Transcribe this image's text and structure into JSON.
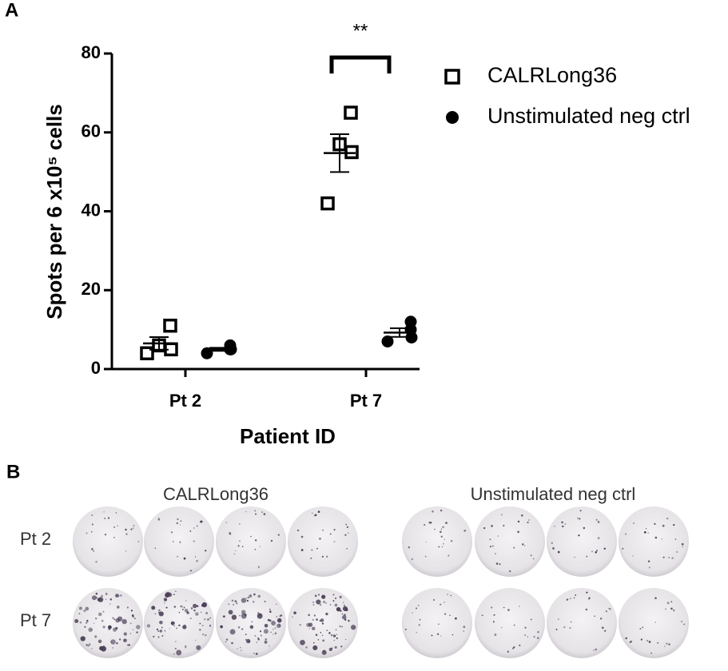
{
  "panel_a_label": "A",
  "chart_data": {
    "type": "dot",
    "y_label": "Spots per 6 x10⁵ cells",
    "x_label": "Patient ID",
    "categories": [
      "Pt 2",
      "Pt 7"
    ],
    "ylim": [
      0,
      80
    ],
    "yticks": [
      0,
      20,
      40,
      60,
      80
    ],
    "annotation": "**",
    "series": [
      {
        "name": "CALRLong36",
        "color": "#000000",
        "marker": "open-square",
        "values": [
          [
            4,
            5,
            6,
            11
          ],
          [
            42,
            55,
            57,
            65
          ]
        ],
        "mean": [
          6.5,
          54.75
        ],
        "sem": [
          1.6,
          4.8
        ]
      },
      {
        "name": "Unstimulated neg ctrl",
        "color": "#000000",
        "marker": "filled-circle",
        "values": [
          [
            4,
            5,
            5,
            6
          ],
          [
            7,
            8,
            10,
            12
          ]
        ],
        "mean": [
          5,
          9.25
        ],
        "sem": [
          0.4,
          1.1
        ]
      }
    ]
  },
  "panel_b": {
    "label": "B",
    "columns": [
      "CALRLong36",
      "Unstimulated neg ctrl"
    ],
    "rows": [
      "Pt 2",
      "Pt 7"
    ]
  }
}
